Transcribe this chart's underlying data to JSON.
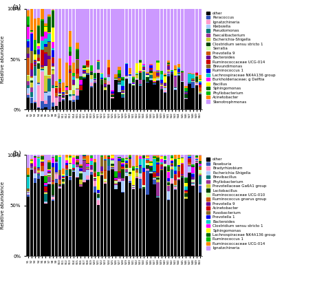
{
  "panel_a": {
    "title": "(a)",
    "legend_labels": [
      "other",
      "Paracoccus",
      "Ignatzchineria",
      "Klebsiella",
      "Pseudomonas",
      "Faecalibacterium",
      "Escherichia-Shigella",
      "Clostridium sensu stricto 1",
      "Serratia",
      "Prevotella 9",
      "Bacteroides",
      "Ruminococcaceae UCG-014",
      "Brevundimonas",
      "Ruminococcus 1",
      "Lachnospiraceae NK4A136 group",
      "Burkholderiaceae; g Delftia",
      "Bacillus",
      "Sphingomonas",
      "Phyllobacterium",
      "Acinetobacter",
      "Stenotrophmonas"
    ],
    "legend_colors": [
      "#000000",
      "#3333cc",
      "#ff99bb",
      "#99ccff",
      "#008080",
      "#993399",
      "#cccc00",
      "#006600",
      "#ccff99",
      "#cc6600",
      "#660099",
      "#cc0000",
      "#996633",
      "#0000ff",
      "#00cccc",
      "#ff00ff",
      "#ffff00",
      "#006600",
      "#00cc00",
      "#ff8800",
      "#cc99ff"
    ],
    "n_bars": 50
  },
  "panel_b": {
    "title": "(b)",
    "legend_labels": [
      "other",
      "Roseburia",
      "Bradyrhizobium",
      "Escherichia-Shigella",
      "Brevibacillus",
      "Phyllobacterium",
      "Prevotellaceae Ga6A1 group",
      "Lactobacillus",
      "Ruminococcaceae UCG-010",
      "Ruminococcus gnarus group",
      "Prevotella 9",
      "Acinetobacter",
      "Fusobacterium",
      "Prevotella 1",
      "Bacteroides",
      "Clostridium sensu stricto 1",
      "Sphingomonas",
      "Lachnospiraceae NK4A136 group",
      "Ruminococcus 1",
      "Ruminococcaceae UCG-014",
      "Ignatzchineria"
    ],
    "legend_colors": [
      "#000000",
      "#3333cc",
      "#ff99bb",
      "#99ccff",
      "#008080",
      "#993399",
      "#cccc00",
      "#006600",
      "#ccff99",
      "#cc6600",
      "#660099",
      "#cc0000",
      "#996633",
      "#0000ff",
      "#00cccc",
      "#ff00ff",
      "#ffff00",
      "#006600",
      "#00cc00",
      "#ff8800",
      "#cc99ff"
    ],
    "n_bars": 50
  },
  "figsize": [
    4.74,
    4.23
  ],
  "dpi": 100
}
